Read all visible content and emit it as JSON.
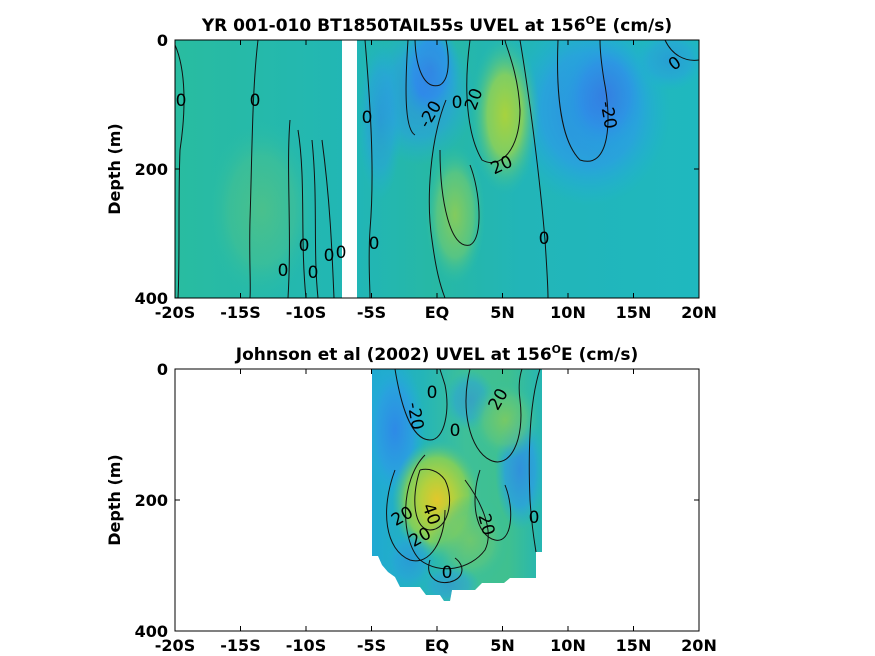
{
  "chart_data": [
    {
      "type": "heatmap",
      "title_main": "YR 001-010 BT1850TAIL55s UVEL at 156",
      "title_sup": "O",
      "title_end": "E (cm/s)",
      "xlabel": "",
      "ylabel": "Depth (m)",
      "xlim": [
        -20,
        20
      ],
      "ylim": [
        0,
        400
      ],
      "y_reversed": true,
      "x_ticks": [
        -20,
        -15,
        -10,
        -5,
        0,
        5,
        10,
        15,
        20
      ],
      "x_tick_labels": [
        "-20S",
        "-15S",
        "-10S",
        "-5S",
        "EQ",
        "5N",
        "10N",
        "15N",
        "20N"
      ],
      "y_ticks": [
        0,
        200,
        400
      ],
      "y_tick_labels": [
        "0",
        "200",
        "400"
      ],
      "colormap": [
        "#3d6ae0",
        "#2f8ee8",
        "#1fb0d8",
        "#2cbfa4",
        "#7fce63",
        "#c7d130",
        "#e9c82a"
      ],
      "contour_labels": [
        {
          "text": "0",
          "x": -19.5,
          "y": 95
        },
        {
          "text": "0",
          "x": -14.2,
          "y": 95
        },
        {
          "text": "0",
          "x": -5.9,
          "y": 120
        },
        {
          "text": "0",
          "x": -10.7,
          "y": 315
        },
        {
          "text": "0",
          "x": -11.7,
          "y": 355
        },
        {
          "text": "0",
          "x": -9.7,
          "y": 355
        },
        {
          "text": "0",
          "x": -7.9,
          "y": 330
        },
        {
          "text": "0",
          "x": -7.2,
          "y": 325
        },
        {
          "text": "0",
          "x": -4.7,
          "y": 310
        },
        {
          "text": "-20",
          "x": 0.1,
          "y": 110
        },
        {
          "text": "0",
          "x": 1.9,
          "y": 95
        },
        {
          "text": "20",
          "x": 3.2,
          "y": 85
        },
        {
          "text": "20",
          "x": 5.4,
          "y": 185
        },
        {
          "text": "0",
          "x": 8.3,
          "y": 305
        },
        {
          "text": "-20",
          "x": 12.6,
          "y": 110
        },
        {
          "text": "0",
          "x": 18.3,
          "y": 35
        }
      ]
    },
    {
      "type": "heatmap",
      "title_main": "Johnson et al (2002) UVEL at 156",
      "title_sup": "O",
      "title_end": "E (cm/s)",
      "xlabel": "",
      "ylabel": "Depth (m)",
      "xlim": [
        -20,
        20
      ],
      "ylim": [
        0,
        400
      ],
      "y_reversed": true,
      "x_ticks": [
        -20,
        -15,
        -10,
        -5,
        0,
        5,
        10,
        15,
        20
      ],
      "x_tick_labels": [
        "-20S",
        "-15S",
        "-10S",
        "-5S",
        "EQ",
        "5N",
        "10N",
        "15N",
        "20N"
      ],
      "y_ticks": [
        0,
        200,
        400
      ],
      "y_tick_labels": [
        "0",
        "200",
        "400"
      ],
      "colormap": [
        "#3d6ae0",
        "#2f8ee8",
        "#1fb0d8",
        "#2cbfa4",
        "#7fce63",
        "#c7d130",
        "#e9c82a"
      ],
      "contour_labels": [
        {
          "text": "0",
          "x": -0.1,
          "y": 35
        },
        {
          "text": "-20",
          "x": -2.1,
          "y": 70
        },
        {
          "text": "0",
          "x": 1.2,
          "y": 95
        },
        {
          "text": "20",
          "x": 5.1,
          "y": 50
        },
        {
          "text": "20",
          "x": -2.3,
          "y": 230
        },
        {
          "text": "40",
          "x": -0.7,
          "y": 225
        },
        {
          "text": "20",
          "x": -1.0,
          "y": 260
        },
        {
          "text": "20",
          "x": 3.4,
          "y": 235
        },
        {
          "text": "0",
          "x": 7.3,
          "y": 230
        },
        {
          "text": "0",
          "x": 0.7,
          "y": 310
        }
      ]
    }
  ]
}
